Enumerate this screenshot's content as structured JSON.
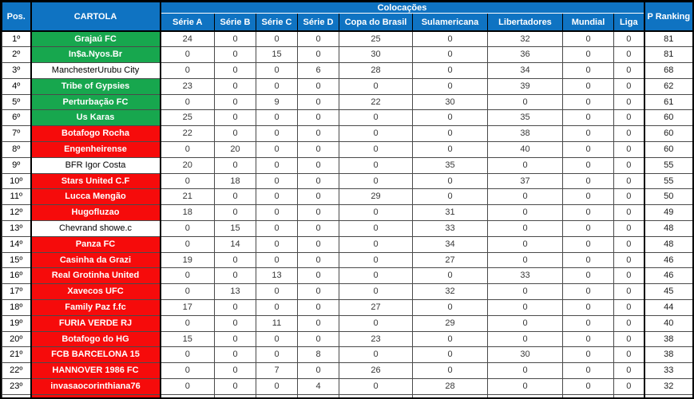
{
  "colors": {
    "header_blue": "#0F73C2",
    "qualified_green": "#17A74E",
    "eliminated_red": "#F60B0B"
  },
  "table": {
    "headers": {
      "pos": "Pos.",
      "cartola": "CARTOLA",
      "colocacoes": "Colocações",
      "p_ranking": "P Ranking",
      "subcolumns": [
        "Série A",
        "Série B",
        "Série C",
        "Série D",
        "Copa do Brasil",
        "Sulamericana",
        "Libertadores",
        "Mundial",
        "Liga"
      ]
    },
    "rows": [
      {
        "pos": "1º",
        "name": "Grajaú FC",
        "status": "green",
        "values": [
          24,
          0,
          0,
          0,
          25,
          0,
          32,
          0,
          0
        ],
        "ranking": 81
      },
      {
        "pos": "2º",
        "name": "In$a.Nyos.Br",
        "status": "green",
        "values": [
          0,
          0,
          15,
          0,
          30,
          0,
          36,
          0,
          0
        ],
        "ranking": 81
      },
      {
        "pos": "3º",
        "name": "ManchesterUrubu City",
        "status": "white",
        "values": [
          0,
          0,
          0,
          6,
          28,
          0,
          34,
          0,
          0
        ],
        "ranking": 68
      },
      {
        "pos": "4º",
        "name": "Tribe of Gypsies",
        "status": "green",
        "values": [
          23,
          0,
          0,
          0,
          0,
          0,
          39,
          0,
          0
        ],
        "ranking": 62
      },
      {
        "pos": "5º",
        "name": "Perturbação FC",
        "status": "green",
        "values": [
          0,
          0,
          9,
          0,
          22,
          30,
          0,
          0,
          0
        ],
        "ranking": 61
      },
      {
        "pos": "6º",
        "name": "Us Karas",
        "status": "green",
        "values": [
          25,
          0,
          0,
          0,
          0,
          0,
          35,
          0,
          0
        ],
        "ranking": 60
      },
      {
        "pos": "7º",
        "name": "Botafogo Rocha",
        "status": "red",
        "values": [
          22,
          0,
          0,
          0,
          0,
          0,
          38,
          0,
          0
        ],
        "ranking": 60
      },
      {
        "pos": "8º",
        "name": "Engenheirense",
        "status": "red",
        "values": [
          0,
          20,
          0,
          0,
          0,
          0,
          40,
          0,
          0
        ],
        "ranking": 60
      },
      {
        "pos": "9º",
        "name": "BFR Igor Costa",
        "status": "white",
        "values": [
          20,
          0,
          0,
          0,
          0,
          35,
          0,
          0,
          0
        ],
        "ranking": 55
      },
      {
        "pos": "10º",
        "name": "Stars United C.F",
        "status": "red",
        "values": [
          0,
          18,
          0,
          0,
          0,
          0,
          37,
          0,
          0
        ],
        "ranking": 55
      },
      {
        "pos": "11º",
        "name": "Lucca Mengão",
        "status": "red",
        "values": [
          21,
          0,
          0,
          0,
          29,
          0,
          0,
          0,
          0
        ],
        "ranking": 50
      },
      {
        "pos": "12º",
        "name": "Hugofluzao",
        "status": "red",
        "values": [
          18,
          0,
          0,
          0,
          0,
          31,
          0,
          0,
          0
        ],
        "ranking": 49
      },
      {
        "pos": "13º",
        "name": "Chevrand showe.c",
        "status": "white",
        "values": [
          0,
          15,
          0,
          0,
          0,
          33,
          0,
          0,
          0
        ],
        "ranking": 48
      },
      {
        "pos": "14º",
        "name": "Panza FC",
        "status": "red",
        "values": [
          0,
          14,
          0,
          0,
          0,
          34,
          0,
          0,
          0
        ],
        "ranking": 48
      },
      {
        "pos": "15º",
        "name": "Casinha da Grazi",
        "status": "red",
        "values": [
          19,
          0,
          0,
          0,
          0,
          27,
          0,
          0,
          0
        ],
        "ranking": 46
      },
      {
        "pos": "16º",
        "name": "Real Grotinha United",
        "status": "red",
        "values": [
          0,
          0,
          13,
          0,
          0,
          0,
          33,
          0,
          0
        ],
        "ranking": 46
      },
      {
        "pos": "17º",
        "name": "Xavecos UFC",
        "status": "red",
        "values": [
          0,
          13,
          0,
          0,
          0,
          32,
          0,
          0,
          0
        ],
        "ranking": 45
      },
      {
        "pos": "18º",
        "name": "Family Paz f.fc",
        "status": "red",
        "values": [
          17,
          0,
          0,
          0,
          27,
          0,
          0,
          0,
          0
        ],
        "ranking": 44
      },
      {
        "pos": "19º",
        "name": "FURIA VERDE RJ",
        "status": "red",
        "values": [
          0,
          0,
          11,
          0,
          0,
          29,
          0,
          0,
          0
        ],
        "ranking": 40
      },
      {
        "pos": "20º",
        "name": "Botafogo do HG",
        "status": "red",
        "values": [
          15,
          0,
          0,
          0,
          23,
          0,
          0,
          0,
          0
        ],
        "ranking": 38
      },
      {
        "pos": "21º",
        "name": "FCB BARCELONA 15",
        "status": "red",
        "values": [
          0,
          0,
          0,
          8,
          0,
          0,
          30,
          0,
          0
        ],
        "ranking": 38
      },
      {
        "pos": "22º",
        "name": "HANNOVER 1986 FC",
        "status": "red",
        "values": [
          0,
          0,
          7,
          0,
          26,
          0,
          0,
          0,
          0
        ],
        "ranking": 33
      },
      {
        "pos": "23º",
        "name": "invasaocorinthiana76",
        "status": "red",
        "values": [
          0,
          0,
          0,
          4,
          0,
          28,
          0,
          0,
          0
        ],
        "ranking": 32
      }
    ]
  }
}
